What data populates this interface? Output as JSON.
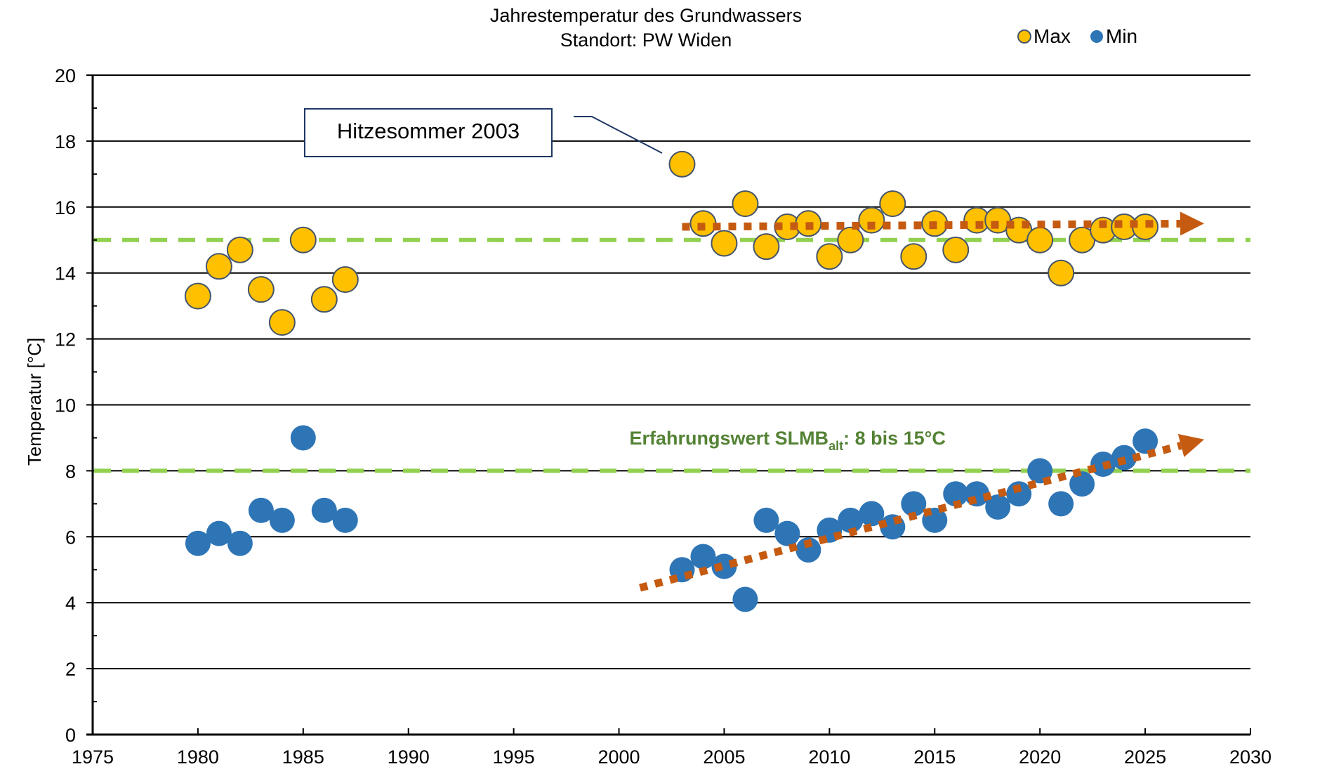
{
  "chart_data": {
    "type": "scatter",
    "title": "Jahrestemperatur des Grundwassers",
    "subtitle": "Standort: PW Widen",
    "xlabel": "",
    "ylabel": "Temperatur [°C]",
    "xlim": [
      1975,
      2030
    ],
    "ylim": [
      0,
      20
    ],
    "x_ticks": [
      1975,
      1980,
      1985,
      1990,
      1995,
      2000,
      2005,
      2010,
      2015,
      2020,
      2025,
      2030
    ],
    "y_ticks": [
      0,
      2,
      4,
      6,
      8,
      10,
      12,
      14,
      16,
      18,
      20
    ],
    "y_minor_step": 1,
    "grid": "horizontal major",
    "legend_position": "top-right",
    "series": [
      {
        "name": "Max",
        "color": "#FFC000",
        "edge_color": "#44546A",
        "points": [
          [
            1980,
            13.3
          ],
          [
            1981,
            14.2
          ],
          [
            1982,
            14.7
          ],
          [
            1983,
            13.5
          ],
          [
            1984,
            12.5
          ],
          [
            1985,
            15.0
          ],
          [
            1986,
            13.2
          ],
          [
            1987,
            13.8
          ],
          [
            2003,
            17.3
          ],
          [
            2004,
            15.5
          ],
          [
            2005,
            14.9
          ],
          [
            2006,
            16.1
          ],
          [
            2007,
            14.8
          ],
          [
            2008,
            15.4
          ],
          [
            2009,
            15.5
          ],
          [
            2010,
            14.5
          ],
          [
            2011,
            15.0
          ],
          [
            2012,
            15.6
          ],
          [
            2013,
            16.1
          ],
          [
            2014,
            14.5
          ],
          [
            2015,
            15.5
          ],
          [
            2016,
            14.7
          ],
          [
            2017,
            15.6
          ],
          [
            2018,
            15.6
          ],
          [
            2019,
            15.3
          ],
          [
            2020,
            15.0
          ],
          [
            2021,
            14.0
          ],
          [
            2022,
            15.0
          ],
          [
            2023,
            15.3
          ],
          [
            2024,
            15.4
          ],
          [
            2025,
            15.4
          ]
        ]
      },
      {
        "name": "Min",
        "color": "#2E75B6",
        "edge_color": "#2E75B6",
        "points": [
          [
            1980,
            5.8
          ],
          [
            1981,
            6.1
          ],
          [
            1982,
            5.8
          ],
          [
            1983,
            6.8
          ],
          [
            1984,
            6.5
          ],
          [
            1985,
            9.0
          ],
          [
            1986,
            6.8
          ],
          [
            1987,
            6.5
          ],
          [
            2003,
            5.0
          ],
          [
            2004,
            5.4
          ],
          [
            2005,
            5.1
          ],
          [
            2006,
            4.1
          ],
          [
            2007,
            6.5
          ],
          [
            2008,
            6.1
          ],
          [
            2009,
            5.6
          ],
          [
            2010,
            6.2
          ],
          [
            2011,
            6.5
          ],
          [
            2012,
            6.7
          ],
          [
            2013,
            6.3
          ],
          [
            2014,
            7.0
          ],
          [
            2015,
            6.5
          ],
          [
            2016,
            7.3
          ],
          [
            2017,
            7.3
          ],
          [
            2018,
            6.9
          ],
          [
            2019,
            7.3
          ],
          [
            2020,
            8.0
          ],
          [
            2021,
            7.0
          ],
          [
            2022,
            7.6
          ],
          [
            2023,
            8.2
          ],
          [
            2024,
            8.4
          ],
          [
            2025,
            8.9
          ]
        ]
      }
    ],
    "reference_lines": [
      {
        "name": "upper-reference",
        "y": 15,
        "color": "#92D050",
        "style": "dashed"
      },
      {
        "name": "lower-reference",
        "y": 8,
        "color": "#92D050",
        "style": "dashed"
      }
    ],
    "reference_label": {
      "text_main": "Erfahrungswert SLMB",
      "text_sub": "alt",
      "text_tail": ": 8 bis 15°C",
      "color": "#548235",
      "x": 2000.5,
      "y": 8.8
    },
    "trend_arrows": [
      {
        "name": "max-trend-arrow",
        "from": [
          2003,
          15.4
        ],
        "to": [
          2027.8,
          15.5
        ],
        "color": "#C55A11",
        "style": "dotted"
      },
      {
        "name": "min-trend-arrow",
        "from": [
          2001,
          4.45
        ],
        "to": [
          2027.8,
          8.95
        ],
        "color": "#C55A11",
        "style": "dotted"
      }
    ],
    "annotations": [
      {
        "text": "Hitzesommer 2003",
        "points_to": [
          2003,
          17.3
        ]
      }
    ]
  }
}
